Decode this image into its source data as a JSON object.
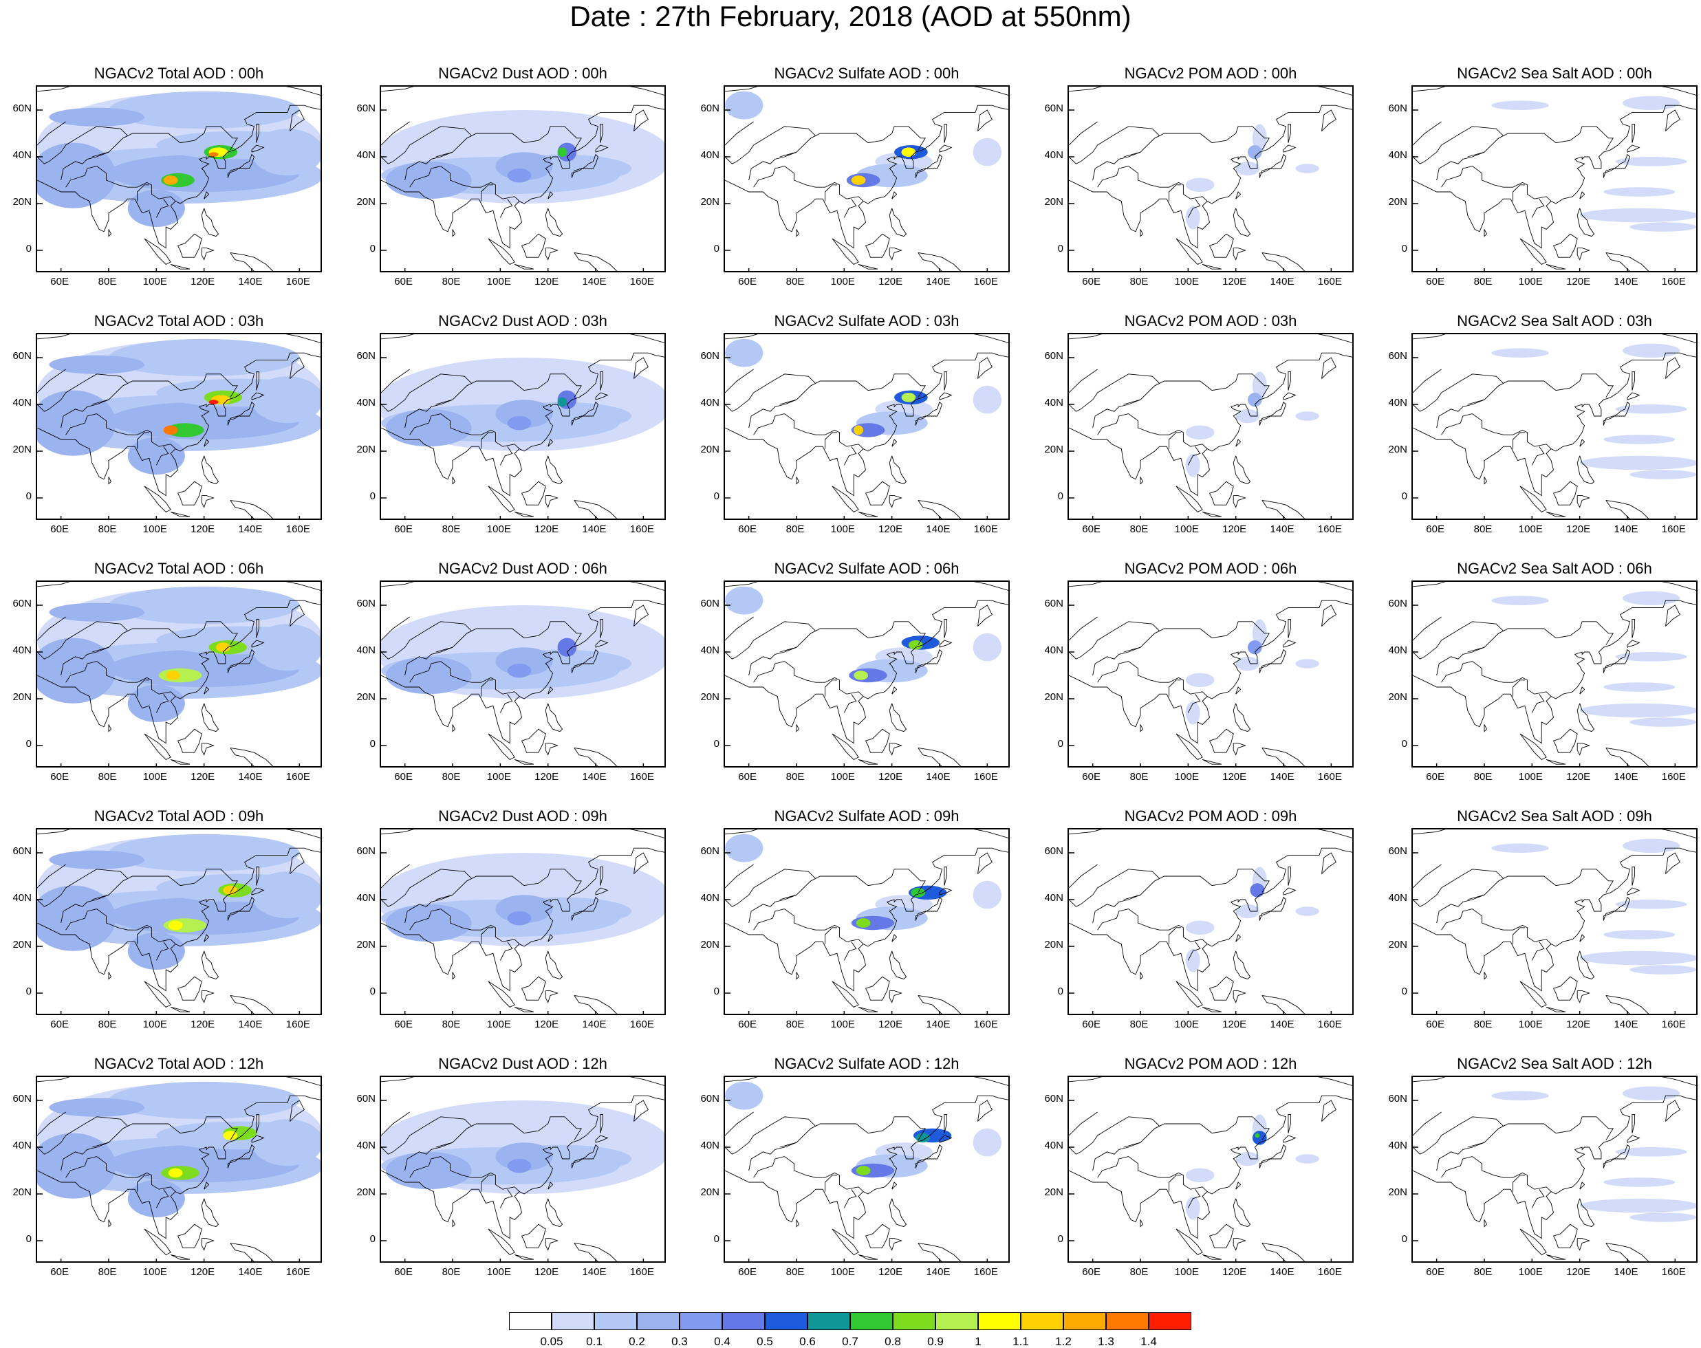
{
  "title": "Date : 27th February, 2018 (AOD at 550nm)",
  "lat_labels": [
    "60N",
    "40N",
    "20N",
    "0"
  ],
  "lon_labels": [
    "60E",
    "80E",
    "100E",
    "120E",
    "140E",
    "160E"
  ],
  "columns": [
    "total",
    "dust",
    "sulfate",
    "pom",
    "seasalt"
  ],
  "panels": [
    [
      "NGACv2 Total AOD : 00h",
      "NGACv2 Dust AOD : 00h",
      "NGACv2 Sulfate AOD : 00h",
      "NGACv2 POM AOD : 00h",
      "NGACv2 Sea Salt AOD : 00h"
    ],
    [
      "NGACv2 Total AOD : 03h",
      "NGACv2 Dust AOD : 03h",
      "NGACv2 Sulfate AOD : 03h",
      "NGACv2 POM AOD : 03h",
      "NGACv2 Sea Salt AOD : 03h"
    ],
    [
      "NGACv2 Total AOD : 06h",
      "NGACv2 Dust AOD : 06h",
      "NGACv2 Sulfate AOD : 06h",
      "NGACv2 POM AOD : 06h",
      "NGACv2 Sea Salt AOD : 06h"
    ],
    [
      "NGACv2 Total AOD : 09h",
      "NGACv2 Dust AOD : 09h",
      "NGACv2 Sulfate AOD : 09h",
      "NGACv2 POM AOD : 09h",
      "NGACv2 Sea Salt  AOD : 09h"
    ],
    [
      "NGACv2 Total AOD  : 12h",
      "NGACv2 Dust AOD : 12h",
      "NGACv2 Sulfate AOD : 12h",
      "NGACv2 POM  AOD : 12h",
      "NGACv2 Sea Salt  AOD : 12h"
    ]
  ],
  "colorbar": {
    "colors": [
      "#ffffff",
      "#d2dcfa",
      "#b4c8f5",
      "#9bb4f0",
      "#829bf0",
      "#6478e6",
      "#1e5adc",
      "#0f9696",
      "#32c832",
      "#7ddc1e",
      "#b4f050",
      "#ffff00",
      "#ffd200",
      "#ffaa00",
      "#ff7800",
      "#ff1e00"
    ],
    "labels": [
      "0.05",
      "0.1",
      "0.2",
      "0.3",
      "0.4",
      "0.5",
      "0.6",
      "0.7",
      "0.8",
      "0.9",
      "1",
      "1.1",
      "1.2",
      "1.3",
      "1.4"
    ]
  }
}
